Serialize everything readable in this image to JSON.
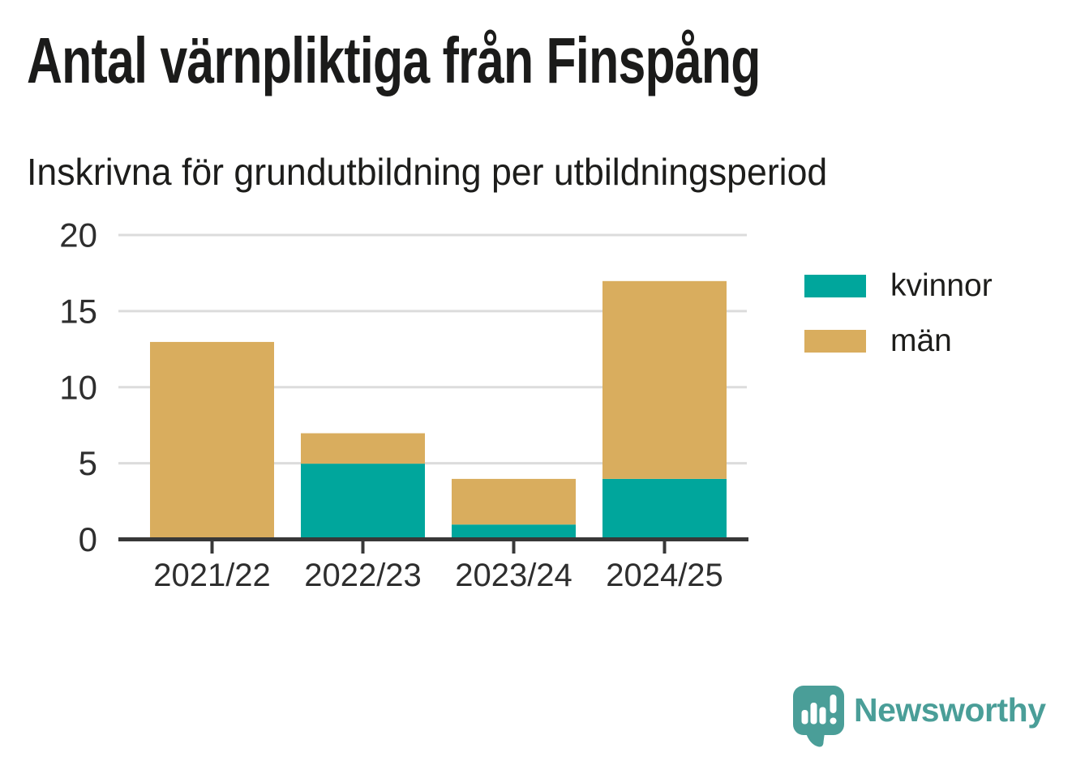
{
  "chart_data": {
    "type": "bar",
    "stacked": true,
    "title": "Antal värnpliktiga från Finspång",
    "subtitle": "Inskrivna för grundutbildning per utbildningsperiod",
    "categories": [
      "2021/22",
      "2022/23",
      "2023/24",
      "2024/25"
    ],
    "series": [
      {
        "name": "kvinnor",
        "color": "#00a69c",
        "values": [
          0,
          5,
          1,
          4
        ]
      },
      {
        "name": "män",
        "color": "#d9ad5e",
        "values": [
          13,
          2,
          3,
          13
        ]
      }
    ],
    "xlabel": "",
    "ylabel": "",
    "ylim": [
      0,
      20
    ],
    "yticks": [
      0,
      5,
      10,
      15,
      20
    ],
    "grid": true,
    "gridline_color": "#dcdcdc",
    "axis_color": "#383838",
    "legend_position": "right"
  },
  "footer": {
    "brand": "Newsworthy",
    "brand_color": "#4a9e98",
    "logo_icon": "speech-bubble-bar-chart-icon"
  }
}
